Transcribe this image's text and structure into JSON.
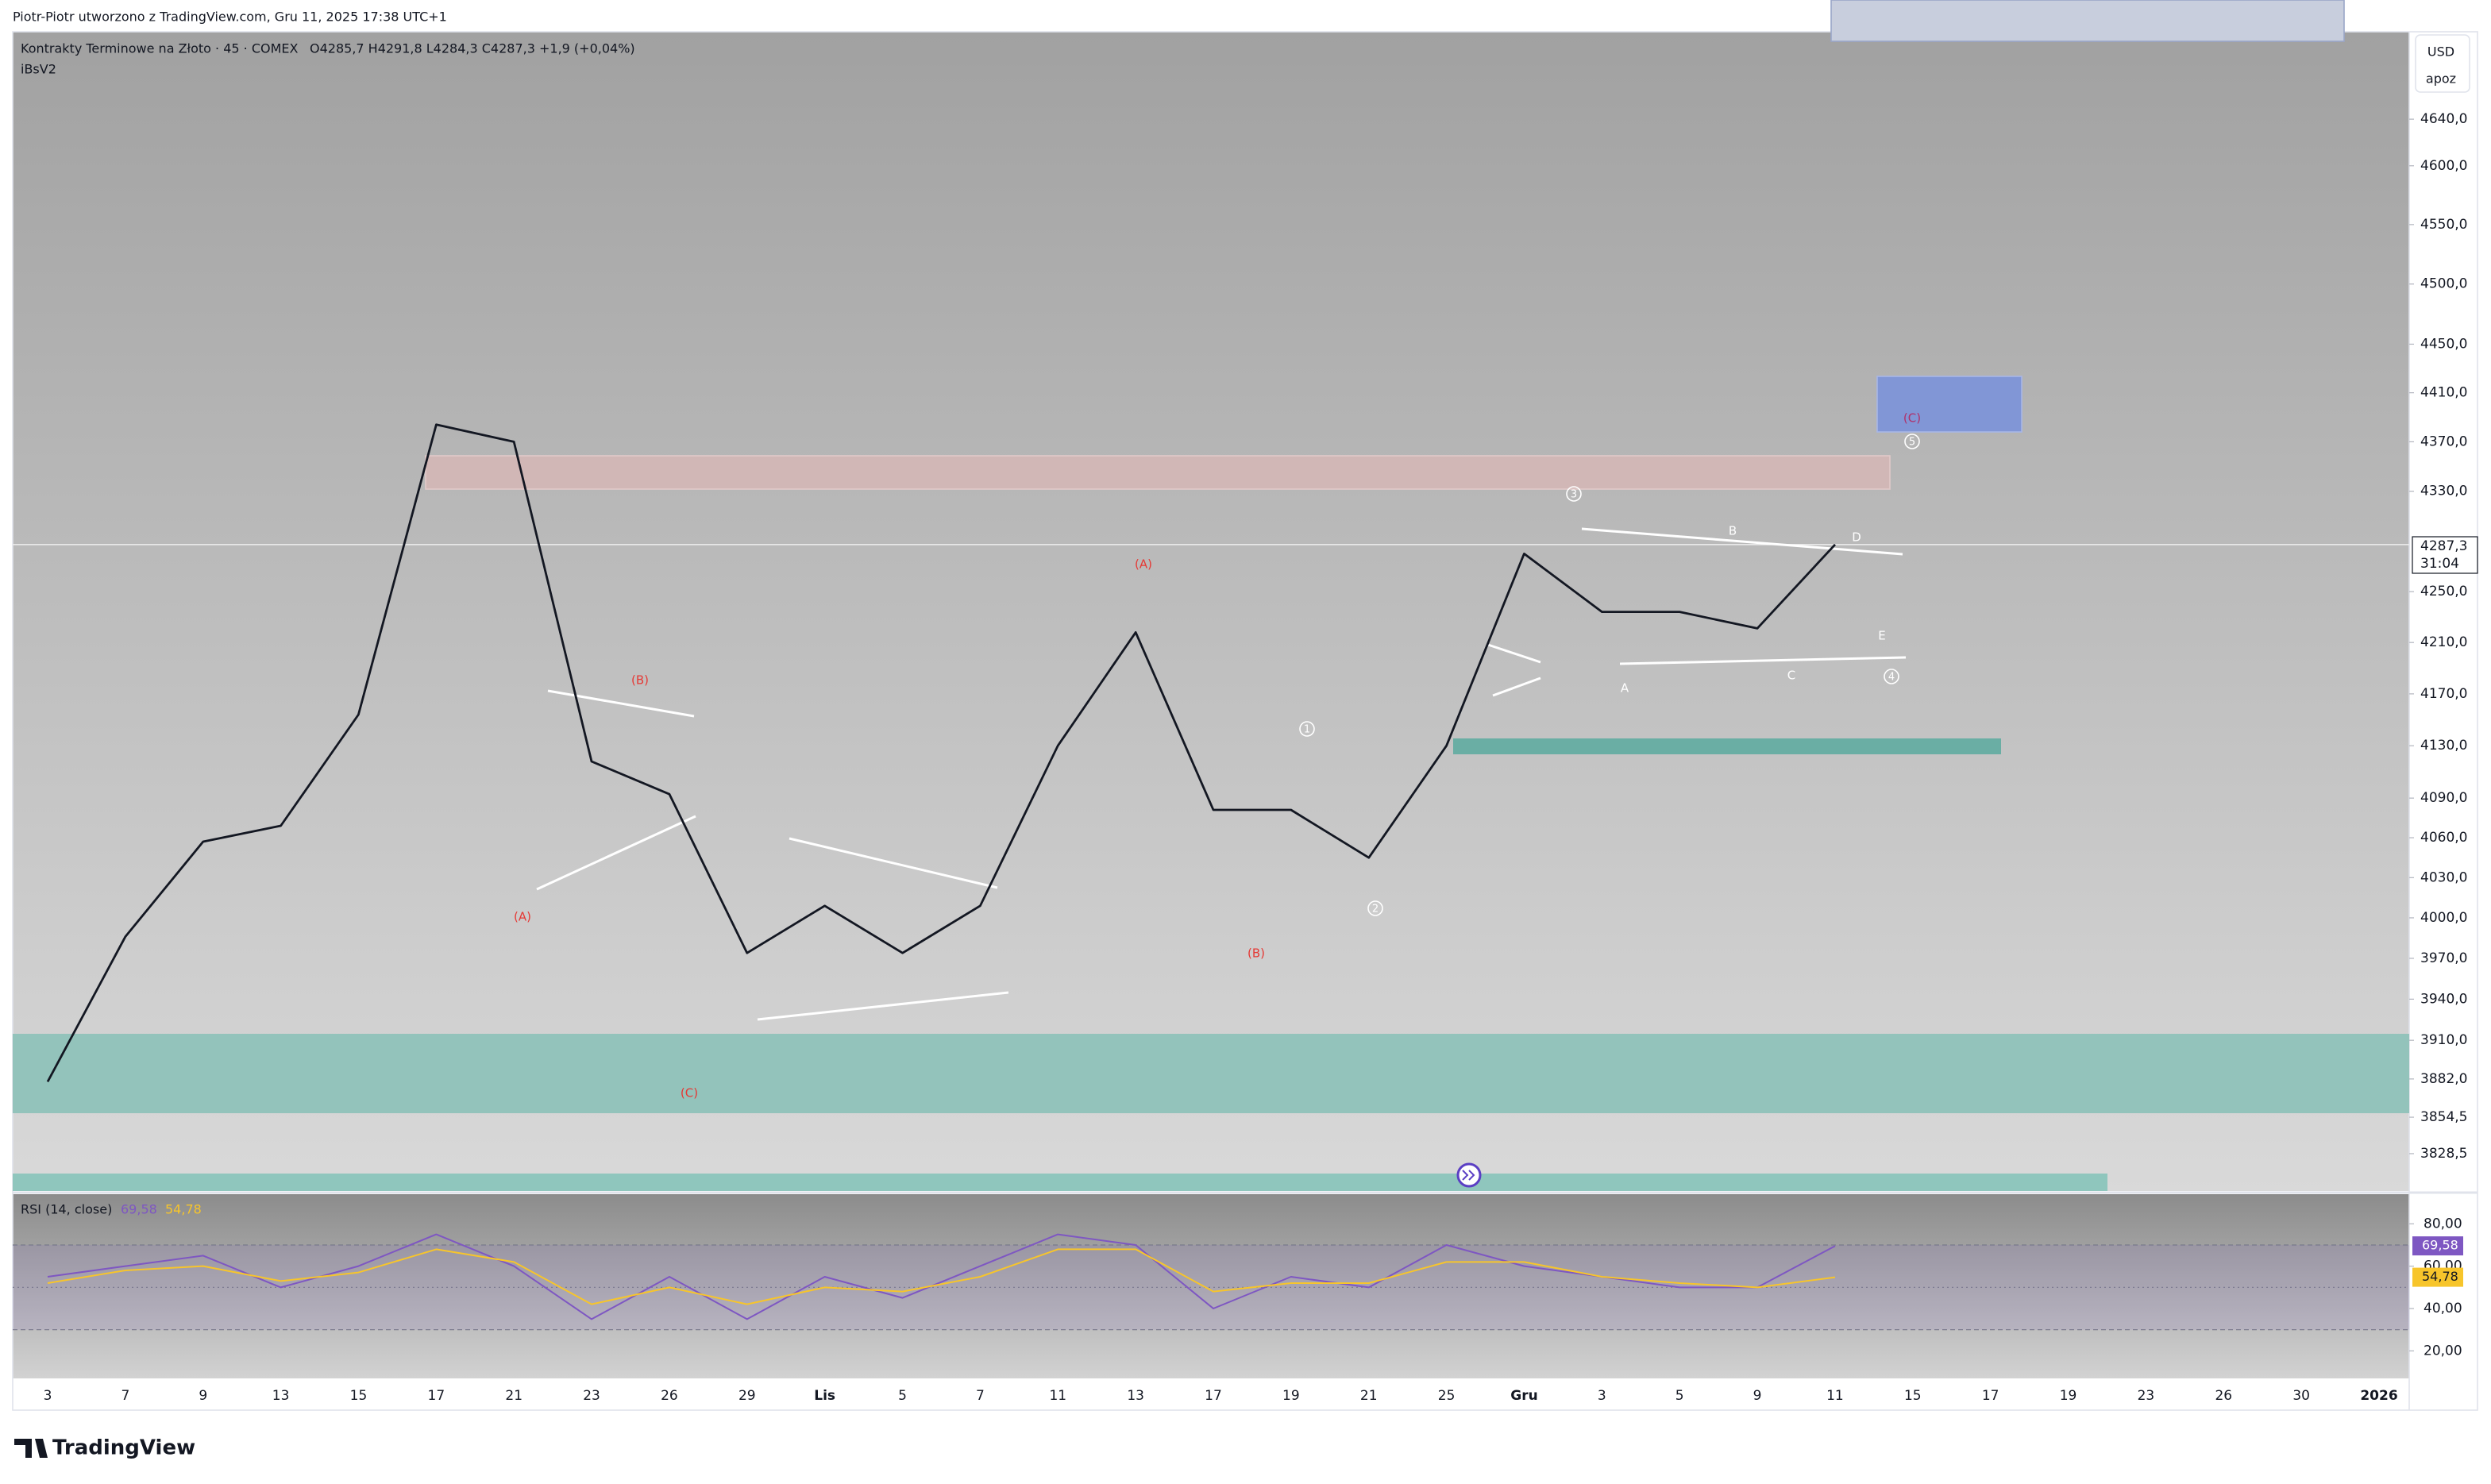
{
  "header": "Piotr-Piotr utworzono z TradingView.com, Gru 11, 2025 17:38 UTC+1",
  "footer_logo": "TradingView",
  "chart_data": [
    {
      "type": "line",
      "title": "Kontrakty Terminowe na Złoto · 45 · COMEX",
      "ohlc": "O4285,7  H4291,8  L4284,3  C4287,3  +1,9 (+0,04%)",
      "indicator": "iBsV2",
      "currency": "USD",
      "scale_mode": "apoz",
      "countdown": "31:04",
      "log": true,
      "categories": [
        "3",
        "7",
        "9",
        "13",
        "15",
        "17",
        "21",
        "23",
        "26",
        "29",
        "Lis",
        "5",
        "7",
        "11",
        "13",
        "17",
        "19",
        "21",
        "25",
        "Gru",
        "3",
        "5",
        "9",
        "11",
        "15",
        "17",
        "19",
        "23",
        "26",
        "30",
        "2026"
      ],
      "series": [
        {
          "color": "#131722",
          "values": [
            3880,
            3986,
            4057,
            4069,
            4154,
            4384,
            4370,
            4118,
            4093,
            3974,
            4009,
            3974,
            4009,
            4130,
            4218,
            4081,
            4081,
            4045,
            4130,
            4280,
            4234,
            4234,
            4221,
            4287.3,
            null,
            null,
            null,
            null,
            null,
            null,
            null
          ],
          "value_labels": [
            null,
            null,
            null,
            null,
            null,
            null,
            null,
            null,
            null,
            null,
            null,
            null,
            null,
            null,
            null,
            null,
            null,
            null,
            null,
            null,
            null,
            null,
            null,
            "4287,3",
            null,
            null,
            null,
            null,
            null,
            null,
            null
          ]
        }
      ],
      "ylim": [
        3802,
        4716
      ],
      "yticks": [
        {
          "value": 4640,
          "label": "4640,0"
        },
        {
          "value": 4600,
          "label": "4600,0"
        },
        {
          "value": 4550,
          "label": "4550,0"
        },
        {
          "value": 4500,
          "label": "4500,0"
        },
        {
          "value": 4450,
          "label": "4450,0"
        },
        {
          "value": 4410,
          "label": "4410,0"
        },
        {
          "value": 4370,
          "label": "4370,0"
        },
        {
          "value": 4330,
          "label": "4330,0"
        },
        {
          "value": 4250,
          "label": "4250,0"
        },
        {
          "value": 4210,
          "label": "4210,0"
        },
        {
          "value": 4170,
          "label": "4170,0"
        },
        {
          "value": 4130,
          "label": "4130,0"
        },
        {
          "value": 4090,
          "label": "4090,0"
        },
        {
          "value": 4060,
          "label": "4060,0"
        },
        {
          "value": 4030,
          "label": "4030,0"
        },
        {
          "value": 4000,
          "label": "4000,0"
        },
        {
          "value": 3970,
          "label": "3970,0"
        },
        {
          "value": 3940,
          "label": "3940,0"
        },
        {
          "value": 3910,
          "label": "3910,0"
        },
        {
          "value": 3882,
          "label": "3882,0"
        },
        {
          "value": 3854.5,
          "label": "3854,5"
        },
        {
          "value": 3828.5,
          "label": "3828,5"
        }
      ],
      "annotations": [
        "(A)",
        "(B)",
        "(C)",
        "(A)",
        "(B)",
        "1",
        "2",
        "3",
        "4",
        "5",
        "(C)",
        "A",
        "B",
        "C",
        "D",
        "E"
      ]
    },
    {
      "type": "line",
      "title": "RSI (14, close)",
      "series": [
        {
          "color": "#7e57c2",
          "values": [
            55,
            60,
            65,
            50,
            60,
            75,
            60,
            35,
            55,
            35,
            55,
            45,
            60,
            75,
            70,
            40,
            55,
            50,
            70,
            60,
            55,
            50,
            50,
            69.58,
            null,
            null,
            null,
            null,
            null,
            null,
            null
          ],
          "value_labels": [
            null,
            null,
            null,
            null,
            null,
            null,
            null,
            null,
            null,
            null,
            null,
            null,
            null,
            null,
            null,
            null,
            null,
            null,
            null,
            null,
            null,
            null,
            null,
            "69,58",
            null,
            null,
            null,
            null,
            null,
            null,
            null
          ]
        },
        {
          "color": "#f7c52b",
          "values": [
            52,
            58,
            60,
            53,
            57,
            68,
            62,
            42,
            50,
            42,
            50,
            48,
            55,
            68,
            68,
            48,
            52,
            52,
            62,
            62,
            55,
            52,
            50,
            54.78,
            null,
            null,
            null,
            null,
            null,
            null,
            null
          ],
          "value_labels": [
            null,
            null,
            null,
            null,
            null,
            null,
            null,
            null,
            null,
            null,
            null,
            null,
            null,
            null,
            null,
            null,
            null,
            null,
            null,
            null,
            null,
            null,
            null,
            "54,78",
            null,
            null,
            null,
            null,
            null,
            null,
            null
          ]
        }
      ],
      "ylim": [
        7,
        94
      ],
      "yticks": [
        {
          "value": 80,
          "label": "80,00"
        },
        {
          "value": 60,
          "label": "60,00"
        },
        {
          "value": 40,
          "label": "40,00"
        },
        {
          "value": 20,
          "label": "20,00"
        }
      ],
      "levels": [
        70,
        50,
        30
      ]
    }
  ]
}
